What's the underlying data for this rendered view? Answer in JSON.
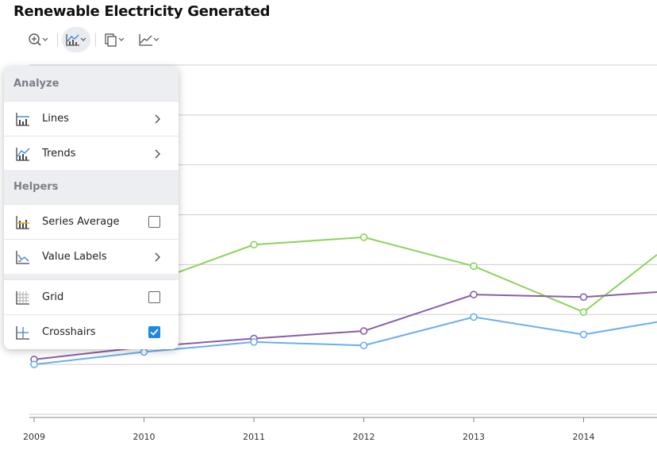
{
  "page": {
    "title": "Renewable Electricity Generated"
  },
  "toolbar": {
    "buttons": [
      {
        "icon": "zoom-in-icon",
        "dropdown": true
      },
      {
        "icon": "chart-analyze-icon",
        "dropdown": true,
        "active": true
      },
      {
        "icon": "copy-icon",
        "dropdown": true
      },
      {
        "icon": "chart-type-icon",
        "dropdown": true
      }
    ]
  },
  "menu": {
    "analyze_header": "Analyze",
    "helpers_header": "Helpers",
    "items": {
      "lines": {
        "label": "Lines",
        "icon": "line-chart-icon",
        "control": "submenu"
      },
      "trends": {
        "label": "Trends",
        "icon": "trend-icon",
        "control": "submenu"
      },
      "series_average": {
        "label": "Series Average",
        "icon": "average-icon",
        "control": "checkbox",
        "checked": false
      },
      "value_labels": {
        "label": "Value Labels",
        "icon": "value-labels-icon",
        "control": "submenu"
      },
      "grid": {
        "label": "Grid",
        "icon": "grid-icon",
        "control": "checkbox",
        "checked": false
      },
      "crosshairs": {
        "label": "Crosshairs",
        "icon": "crosshairs-icon",
        "control": "checkbox",
        "checked": true
      }
    }
  },
  "colors": {
    "accent": "#1e88e5",
    "green": "#8bd35a",
    "purple": "#8a5ea8",
    "blue": "#6aaef0"
  },
  "chart_data": {
    "type": "line",
    "title": "Renewable Electricity Generated",
    "x": [
      "2009",
      "2010",
      "2011",
      "2012",
      "2013",
      "2014"
    ],
    "xlim": [
      "2009",
      "2014"
    ],
    "ylim": [
      0,
      7
    ],
    "grid": true,
    "series": [
      {
        "color": "#8bd35a",
        "values": [
          null,
          2.6,
          3.4,
          3.55,
          2.97,
          2.05
        ]
      },
      {
        "color": "#8a5ea8",
        "values": [
          1.1,
          1.35,
          1.52,
          1.67,
          2.4,
          2.35
        ]
      },
      {
        "color": "#6aaef0",
        "values": [
          1.0,
          1.25,
          1.45,
          1.38,
          1.95,
          1.6
        ]
      }
    ]
  }
}
